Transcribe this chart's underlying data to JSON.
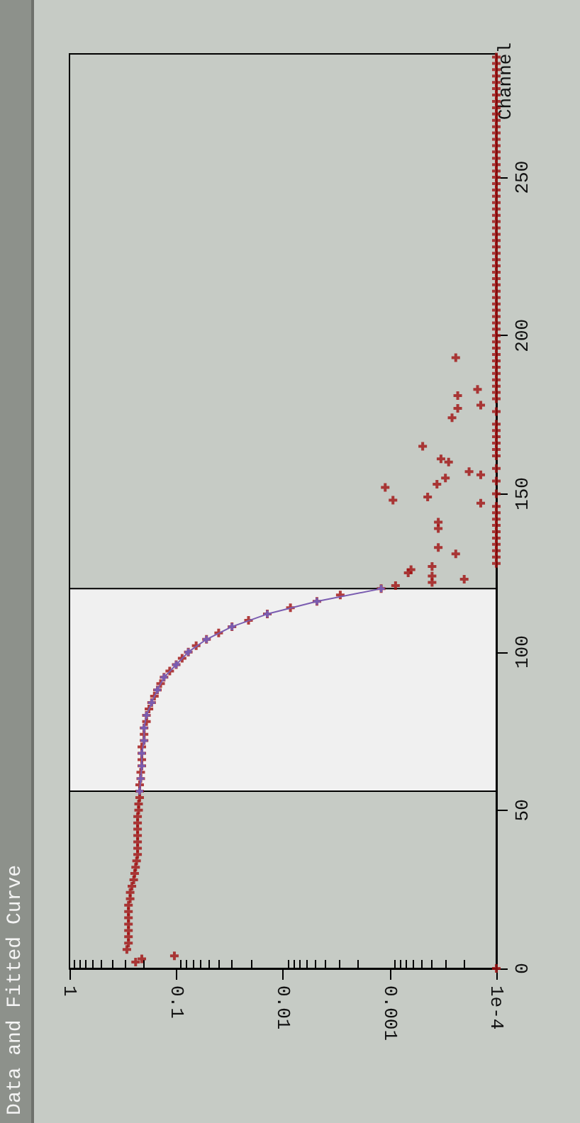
{
  "chart_data": {
    "type": "scatter",
    "title": "Data and Fitted Curve",
    "ylabel": "Channel",
    "log": "x",
    "marker": "cross",
    "ylim": [
      0,
      289
    ],
    "yticks": [
      0,
      50,
      100,
      150,
      200,
      250
    ],
    "xlim": [
      1,
      0.0001
    ],
    "xticks": [
      1,
      0.1,
      0.01,
      0.001,
      {
        "value": 0.0001,
        "label": "1e-4"
      }
    ],
    "bands": [
      {
        "axis": "y",
        "from": 56,
        "to": 120,
        "color": "#f0f0f0"
      }
    ],
    "series": [
      {
        "type": "scatter",
        "color": "#a01010",
        "values": [
          0,
          2,
          3,
          4,
          6,
          8,
          10,
          12,
          14,
          16,
          18,
          20,
          22,
          24,
          26,
          28,
          30,
          32,
          34,
          36,
          38,
          40,
          42,
          44,
          46,
          48,
          50,
          52,
          54,
          56,
          58,
          60,
          62,
          64,
          66,
          68,
          70,
          72,
          74,
          76,
          78,
          80,
          82,
          84,
          86,
          88,
          90,
          92,
          94,
          96,
          98,
          100,
          102,
          104,
          106,
          108,
          110,
          112,
          114,
          116,
          118,
          120,
          121,
          122,
          123,
          124,
          125,
          126,
          127,
          131,
          133,
          139,
          141,
          147,
          148,
          149,
          152,
          153,
          155,
          156,
          157,
          160,
          161,
          165,
          174,
          177,
          178,
          181,
          183,
          193,
          128,
          130,
          132,
          134,
          136,
          138,
          140,
          142,
          144,
          146,
          150,
          154,
          158,
          162,
          164,
          166,
          168,
          170,
          172,
          176,
          180,
          182,
          184,
          186,
          188,
          190,
          192,
          194,
          196,
          198,
          200,
          202,
          204,
          206,
          208,
          210,
          212,
          214,
          216,
          218,
          220,
          222,
          224,
          226,
          228,
          230,
          232,
          234,
          236,
          238,
          240,
          242,
          244,
          246,
          248,
          250,
          252,
          254,
          256,
          258,
          260,
          262,
          264,
          266,
          268,
          270,
          272,
          274,
          276,
          278,
          280,
          282,
          284,
          286,
          288
        ],
        "x": [
          0.0001,
          0.24,
          0.21,
          0.104,
          0.29,
          0.28,
          0.28,
          0.28,
          0.28,
          0.28,
          0.28,
          0.28,
          0.27,
          0.27,
          0.26,
          0.25,
          0.245,
          0.24,
          0.235,
          0.23,
          0.23,
          0.23,
          0.23,
          0.23,
          0.23,
          0.23,
          0.225,
          0.225,
          0.22,
          0.22,
          0.22,
          0.215,
          0.215,
          0.21,
          0.21,
          0.21,
          0.21,
          0.2,
          0.2,
          0.2,
          0.19,
          0.19,
          0.18,
          0.17,
          0.16,
          0.15,
          0.14,
          0.13,
          0.115,
          0.1,
          0.088,
          0.077,
          0.065,
          0.052,
          0.04,
          0.03,
          0.021,
          0.014,
          0.0085,
          0.0048,
          0.0029,
          0.0012,
          0.00088,
          0.0004,
          0.0002,
          0.0004,
          0.00067,
          0.00063,
          0.0004,
          0.00024,
          0.00035,
          0.00035,
          0.00035,
          0.00014,
          0.00093,
          0.00044,
          0.0011,
          0.00036,
          0.0003,
          0.00014,
          0.00018,
          0.00028,
          0.00033,
          0.00049,
          0.00026,
          0.00023,
          0.00014,
          0.00023,
          0.00015,
          0.00024,
          0.0001,
          0.0001,
          0.0001,
          0.0001,
          0.0001,
          0.0001,
          0.0001,
          0.0001,
          0.0001,
          0.0001,
          0.0001,
          0.0001,
          0.0001,
          0.0001,
          0.0001,
          0.0001,
          0.0001,
          0.0001,
          0.0001,
          0.0001,
          0.0001,
          0.0001,
          0.0001,
          0.0001,
          0.0001,
          0.0001,
          0.0001,
          0.0001,
          0.0001,
          0.0001,
          0.0001,
          0.0001,
          0.0001,
          0.0001,
          0.0001,
          0.0001,
          0.0001,
          0.0001,
          0.0001,
          0.0001,
          0.0001,
          0.0001,
          0.0001,
          0.0001,
          0.0001,
          0.0001,
          0.0001,
          0.0001,
          0.0001,
          0.0001,
          0.0001,
          0.0001,
          0.0001,
          0.0001,
          0.0001,
          0.0001,
          0.0001,
          0.0001,
          0.0001,
          0.0001,
          0.0001,
          0.0001,
          0.0001,
          0.0001,
          0.0001,
          0.0001,
          0.0001,
          0.0001,
          0.0001,
          0.0001,
          0.0001,
          0.0001,
          0.0001,
          0.0001,
          0.0001
        ]
      },
      {
        "type": "line",
        "color": "#7a5cb0",
        "values": [
          56,
          60,
          64,
          68,
          72,
          76,
          80,
          84,
          88,
          92,
          96,
          100,
          104,
          108,
          112,
          116,
          120
        ],
        "x": [
          0.22,
          0.215,
          0.21,
          0.21,
          0.2,
          0.2,
          0.19,
          0.17,
          0.15,
          0.13,
          0.1,
          0.077,
          0.052,
          0.03,
          0.014,
          0.0048,
          0.0012
        ]
      }
    ]
  }
}
